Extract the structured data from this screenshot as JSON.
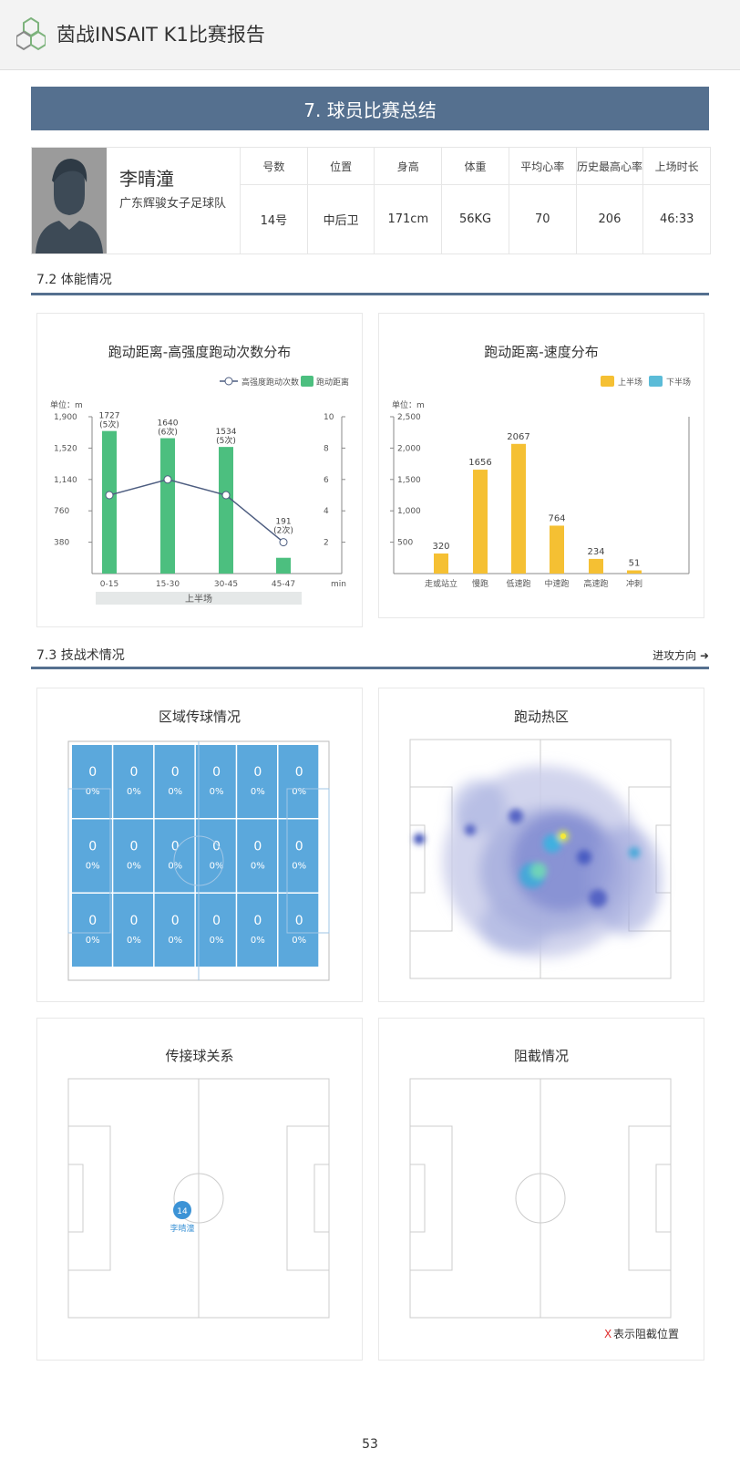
{
  "header": {
    "title": "茵战INSAIT K1比赛报告"
  },
  "section": {
    "title": "7. 球员比赛总结"
  },
  "player": {
    "name": "李晴潼",
    "team": "广东辉骏女子足球队",
    "stats": [
      {
        "label": "号数",
        "value": "14号"
      },
      {
        "label": "位置",
        "value": "中后卫"
      },
      {
        "label": "身高",
        "value": "171cm"
      },
      {
        "label": "体重",
        "value": "56KG"
      },
      {
        "label": "平均心率",
        "value": "70"
      },
      {
        "label": "历史最高心率",
        "value": "206"
      },
      {
        "label": "上场时长",
        "value": "46:33"
      }
    ]
  },
  "physical": {
    "title": "7.2 体能情况"
  },
  "tactical": {
    "title": "7.3 技战术情况",
    "direction_note": "进攻方向 ➜"
  },
  "charts": {
    "distance_sprint": {
      "title": "跑动距离-高强度跑动次数分布",
      "legend_line": "高强度跑动次数",
      "legend_bar": "跑动距离",
      "unit": "单位：m",
      "half_label": "上半场",
      "x_unit": "min",
      "left_ticks": [
        "1,900",
        "1,520",
        "1,140",
        "760",
        "380"
      ],
      "right_ticks": [
        "10",
        "8",
        "6",
        "4",
        "2"
      ]
    },
    "distance_speed": {
      "title": "跑动距离-速度分布",
      "legend_first": "上半场",
      "legend_second": "下半场",
      "unit": "单位：m",
      "ticks": [
        "2,500",
        "2,000",
        "1,500",
        "1,000",
        "500"
      ]
    }
  },
  "chart_data": [
    {
      "type": "bar",
      "title": "跑动距离-高强度跑动次数分布",
      "categories": [
        "0-15",
        "15-30",
        "30-45",
        "45-47"
      ],
      "series": [
        {
          "name": "跑动距离",
          "type": "bar",
          "values": [
            1727,
            1640,
            1534,
            191
          ],
          "color": "#4cbf7f"
        },
        {
          "name": "高强度跑动次数",
          "type": "line",
          "values": [
            5,
            6,
            5,
            2
          ],
          "color": "#4d5d80"
        }
      ],
      "data_labels": [
        "1727",
        "(5次)",
        "1640",
        "(6次)",
        "1534",
        "(5次)",
        "191",
        "(2次)"
      ],
      "ylim_left": [
        0,
        1900
      ],
      "ylim_right": [
        0,
        10
      ],
      "grid": false,
      "legend": "top-right"
    },
    {
      "type": "bar",
      "title": "跑动距离-速度分布",
      "categories": [
        "走或站立",
        "慢跑",
        "低速跑",
        "中速跑",
        "高速跑",
        "冲刺"
      ],
      "series": [
        {
          "name": "上半场",
          "values": [
            320,
            1656,
            2067,
            764,
            234,
            51
          ],
          "color": "#f5c033"
        },
        {
          "name": "下半场",
          "values": [
            0,
            0,
            0,
            0,
            0,
            0
          ],
          "color": "#5bbcd8"
        }
      ],
      "ylim": [
        0,
        2500
      ],
      "grid": false,
      "legend": "top-right"
    }
  ],
  "panels": {
    "zone_pass": {
      "title": "区域传球情况",
      "count": "0",
      "pct": "0%"
    },
    "heatmap": {
      "title": "跑动热区"
    },
    "pass_network": {
      "title": "传接球关系",
      "player_number": "14",
      "player_label": "李晴潼"
    },
    "interceptions": {
      "title": "阻截情况",
      "legend_mark": "X",
      "legend_text": "表示阻截位置"
    }
  },
  "footer": {
    "page": "53"
  }
}
